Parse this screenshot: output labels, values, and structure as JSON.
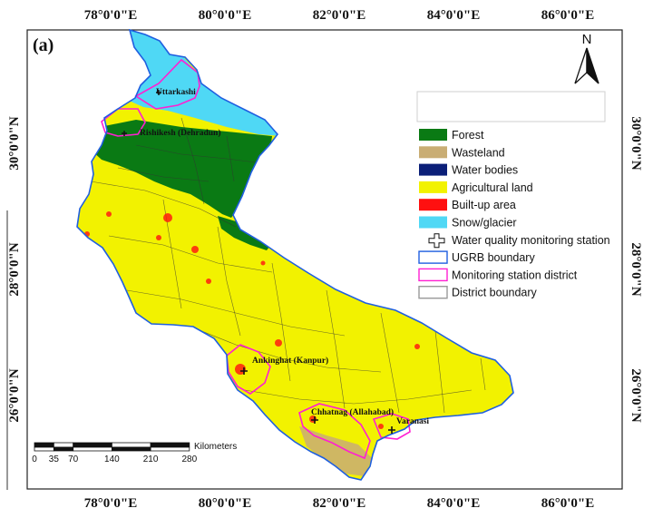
{
  "panel_label": "(a)",
  "north_label": "N",
  "axes": {
    "top": [
      "78°0'0\"E",
      "80°0'0\"E",
      "82°0'0\"E",
      "84°0'0\"E",
      "86°0'0\"E"
    ],
    "bottom": [
      "78°0'0\"E",
      "80°0'0\"E",
      "82°0'0\"E",
      "84°0'0\"E",
      "86°0'0\"E"
    ],
    "left": [
      "30°0'0\"N",
      "28°0'0\"N",
      "26°0'0\"N"
    ],
    "right": [
      "30°0'0\"N",
      "28°0'0\"N",
      "26°0'0\"N"
    ]
  },
  "legend": [
    {
      "label": "Forest",
      "kind": "fill",
      "color": "#0a7a14"
    },
    {
      "label": "Wasteland",
      "kind": "fill",
      "color": "#c9ad74"
    },
    {
      "label": "Water bodies",
      "kind": "fill",
      "color": "#0b1f78"
    },
    {
      "label": "Agricultural land",
      "kind": "fill",
      "color": "#f2f200"
    },
    {
      "label": "Built-up area",
      "kind": "fill",
      "color": "#ff1010"
    },
    {
      "label": "Snow/glacier",
      "kind": "fill",
      "color": "#4fd8f5"
    },
    {
      "label": "Water quality monitoring station",
      "kind": "cross",
      "color": "#111111"
    },
    {
      "label": "UGRB boundary",
      "kind": "outline",
      "color": "#1f5fe0"
    },
    {
      "label": "Monitoring station district",
      "kind": "outline",
      "color": "#ff1fd2"
    },
    {
      "label": "District boundary",
      "kind": "outline",
      "color": "#9a9a9a"
    }
  ],
  "stations": [
    "Uttarkashi",
    "Rishikesh (Dehradun)",
    "Ankinghat (Kanpur)",
    "Chhatnag (Allahabad)",
    "Varanasi"
  ],
  "scale_bar": {
    "unit": "Kilometers",
    "ticks": [
      "0",
      "35",
      "70",
      "140",
      "210",
      "280"
    ]
  },
  "colors": {
    "forest": "#0a7a14",
    "agri": "#f2f200",
    "snow": "#4fd8f5",
    "builtup": "#ff1010",
    "water": "#0b1f78",
    "basin_outline": "#1f5fe0",
    "station_district": "#ff1fd2",
    "district": "#333333"
  }
}
